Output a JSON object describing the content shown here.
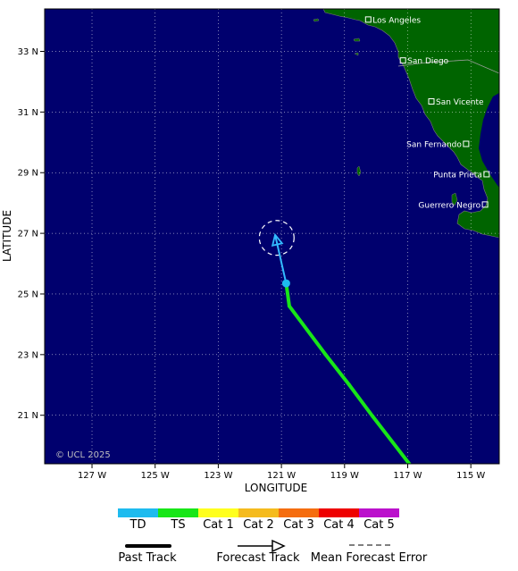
{
  "map": {
    "copyright": "© UCL 2025",
    "xlabel": "LONGITUDE",
    "ylabel": "LATITUDE",
    "lon_range": [
      -128.5,
      -114.1
    ],
    "lat_range": [
      19.4,
      34.4
    ],
    "lon_ticks": [
      {
        "value": -127,
        "label": "127 W"
      },
      {
        "value": -125,
        "label": "125 W"
      },
      {
        "value": -123,
        "label": "123 W"
      },
      {
        "value": -121,
        "label": "121 W"
      },
      {
        "value": -119,
        "label": "119 W"
      },
      {
        "value": -117,
        "label": "117 W"
      },
      {
        "value": -115,
        "label": "115 W"
      }
    ],
    "lat_ticks": [
      {
        "value": 33,
        "label": "33 N"
      },
      {
        "value": 31,
        "label": "31 N"
      },
      {
        "value": 29,
        "label": "29 N"
      },
      {
        "value": 27,
        "label": "27 N"
      },
      {
        "value": 25,
        "label": "25 N"
      },
      {
        "value": 23,
        "label": "23 N"
      },
      {
        "value": 21,
        "label": "21 N"
      }
    ],
    "colors": {
      "ocean": "#00006e",
      "land": "#006400",
      "grid": "#ffffff",
      "border": "#000000",
      "forecast": "#33bbff",
      "error_circle": "#ffffff"
    },
    "cities": [
      {
        "name": "Los Angeles",
        "lon": -118.25,
        "lat": 34.05,
        "label_side": "right"
      },
      {
        "name": "San Diego",
        "lon": -117.15,
        "lat": 32.7,
        "label_side": "right"
      },
      {
        "name": "San Vicente",
        "lon": -116.25,
        "lat": 31.35,
        "label_side": "right"
      },
      {
        "name": "San Fernando",
        "lon": -115.15,
        "lat": 29.95,
        "label_side": "left"
      },
      {
        "name": "Punta Prieta",
        "lon": -114.5,
        "lat": 28.95,
        "label_side": "left"
      },
      {
        "name": "Guerrero Negro",
        "lon": -114.55,
        "lat": 27.95,
        "label_side": "left"
      }
    ]
  },
  "storm": {
    "past_track": [
      {
        "lon": -116.95,
        "lat": 19.4,
        "category": "TS"
      },
      {
        "lon": -118.1,
        "lat": 20.95,
        "category": "TS"
      },
      {
        "lon": -118.85,
        "lat": 22.0,
        "category": "TS"
      },
      {
        "lon": -119.6,
        "lat": 23.0,
        "category": "TS"
      },
      {
        "lon": -120.75,
        "lat": 24.6,
        "category": "TS"
      },
      {
        "lon": -120.85,
        "lat": 25.35,
        "category": "TD"
      }
    ],
    "current_position": {
      "lon": -120.85,
      "lat": 25.35,
      "category": "TD"
    },
    "forecast_track": [
      {
        "lon": -120.85,
        "lat": 25.35
      },
      {
        "lon": -121.2,
        "lat": 26.95
      }
    ],
    "error_circle": {
      "lon": -121.15,
      "lat": 26.85,
      "radius_deg": 0.55
    }
  },
  "legend": {
    "categories": [
      {
        "name": "TD",
        "color": "#1ebbef"
      },
      {
        "name": "TS",
        "color": "#18e618"
      },
      {
        "name": "Cat 1",
        "color": "#ffff1e"
      },
      {
        "name": "Cat 2",
        "color": "#f5bb1e"
      },
      {
        "name": "Cat 3",
        "color": "#f56d0f"
      },
      {
        "name": "Cat 4",
        "color": "#ee0000"
      },
      {
        "name": "Cat 5",
        "color": "#bb11cc"
      }
    ],
    "line_types": {
      "past": "Past Track",
      "forecast": "Forecast Track",
      "error": "Mean Forecast Error"
    }
  }
}
